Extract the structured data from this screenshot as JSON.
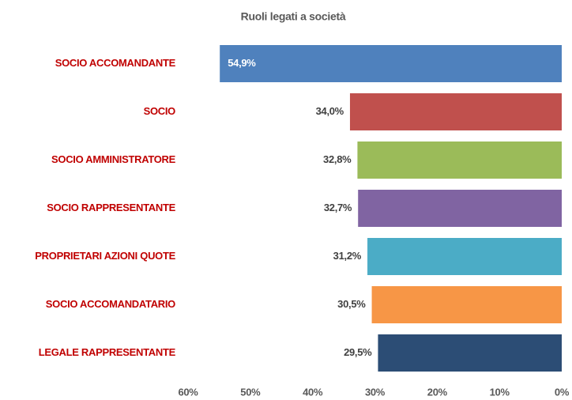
{
  "chart_data": {
    "type": "bar",
    "orientation": "horizontal",
    "x_reversed": true,
    "title": "Ruoli legati a società",
    "categories": [
      "SOCIO ACCOMANDANTE",
      "SOCIO",
      "SOCIO AMMINISTRATORE",
      "SOCIO RAPPRESENTANTE",
      "PROPRIETARI AZIONI QUOTE",
      "SOCIO ACCOMANDATARIO",
      "LEGALE RAPPRESENTANTE"
    ],
    "values": [
      54.9,
      34.0,
      32.8,
      32.7,
      31.2,
      30.5,
      29.5
    ],
    "value_labels": [
      "54,9%",
      "34,0%",
      "32,8%",
      "32,7%",
      "31,2%",
      "30,5%",
      "29,5%"
    ],
    "colors": [
      "#4f81bd",
      "#c0504d",
      "#9bbb59",
      "#8064a2",
      "#4bacc6",
      "#f79646",
      "#2c4d75"
    ],
    "xlim": [
      0,
      60
    ],
    "xticks": [
      {
        "value": 60,
        "label": "60%"
      },
      {
        "value": 50,
        "label": "50%"
      },
      {
        "value": 40,
        "label": "40%"
      },
      {
        "value": 30,
        "label": "30%"
      },
      {
        "value": 20,
        "label": "20%"
      },
      {
        "value": 10,
        "label": "10%"
      },
      {
        "value": 0,
        "label": "0%"
      }
    ],
    "grid": false
  }
}
